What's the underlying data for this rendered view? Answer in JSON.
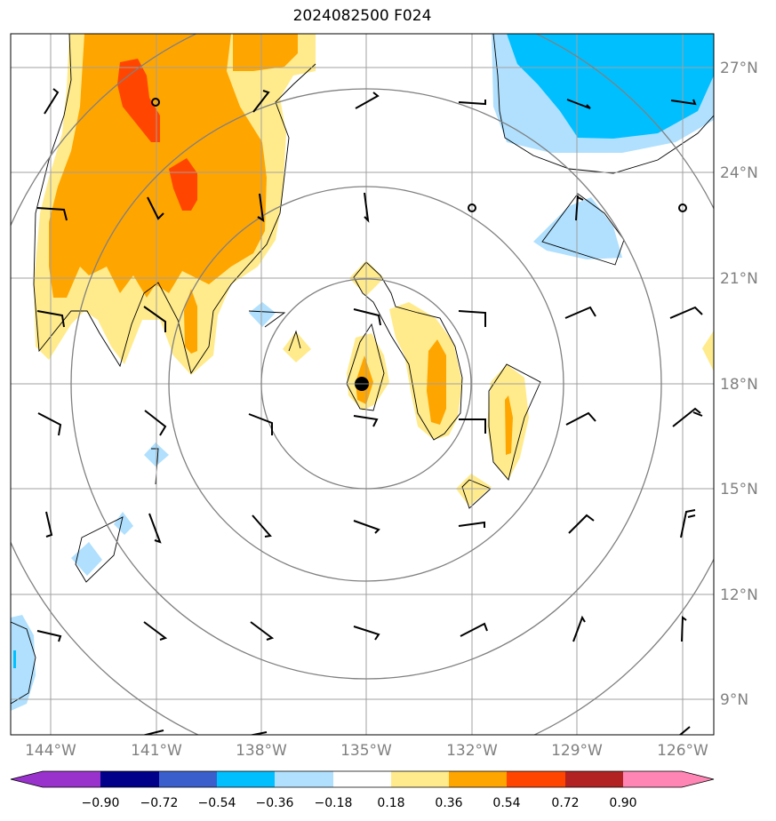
{
  "title": "2024082500 F024",
  "lat_labels": [
    "27°N",
    "24°N",
    "21°N",
    "18°N",
    "15°N",
    "12°N",
    "9°N"
  ],
  "lon_labels": [
    "144°W",
    "141°W",
    "138°W",
    "135°W",
    "132°W",
    "129°W",
    "126°W"
  ],
  "colorbar": {
    "tick_labels": [
      "−0.90",
      "−0.72",
      "−0.54",
      "−0.36",
      "−0.18",
      "0.18",
      "0.36",
      "0.54",
      "0.72",
      "0.90"
    ],
    "colors": [
      "#9932cc",
      "#00008b",
      "#3a5fcd",
      "#00bfff",
      "#b0e0fe",
      "#ffffff",
      "#ffeb8c",
      "#ffa500",
      "#ff4500",
      "#b22222",
      "#ff86b4"
    ]
  },
  "palette": {
    "grid": "#a0a0a0",
    "range_rings": "#808080",
    "light_blue": "#b0e0fe",
    "blue": "#00bfff",
    "yellow": "#ffeb8c",
    "orange": "#ffa500",
    "red": "#ff4500"
  },
  "storm_center": {
    "lat": 18.0,
    "lon": "135°W"
  },
  "range_ring_count": 4
}
